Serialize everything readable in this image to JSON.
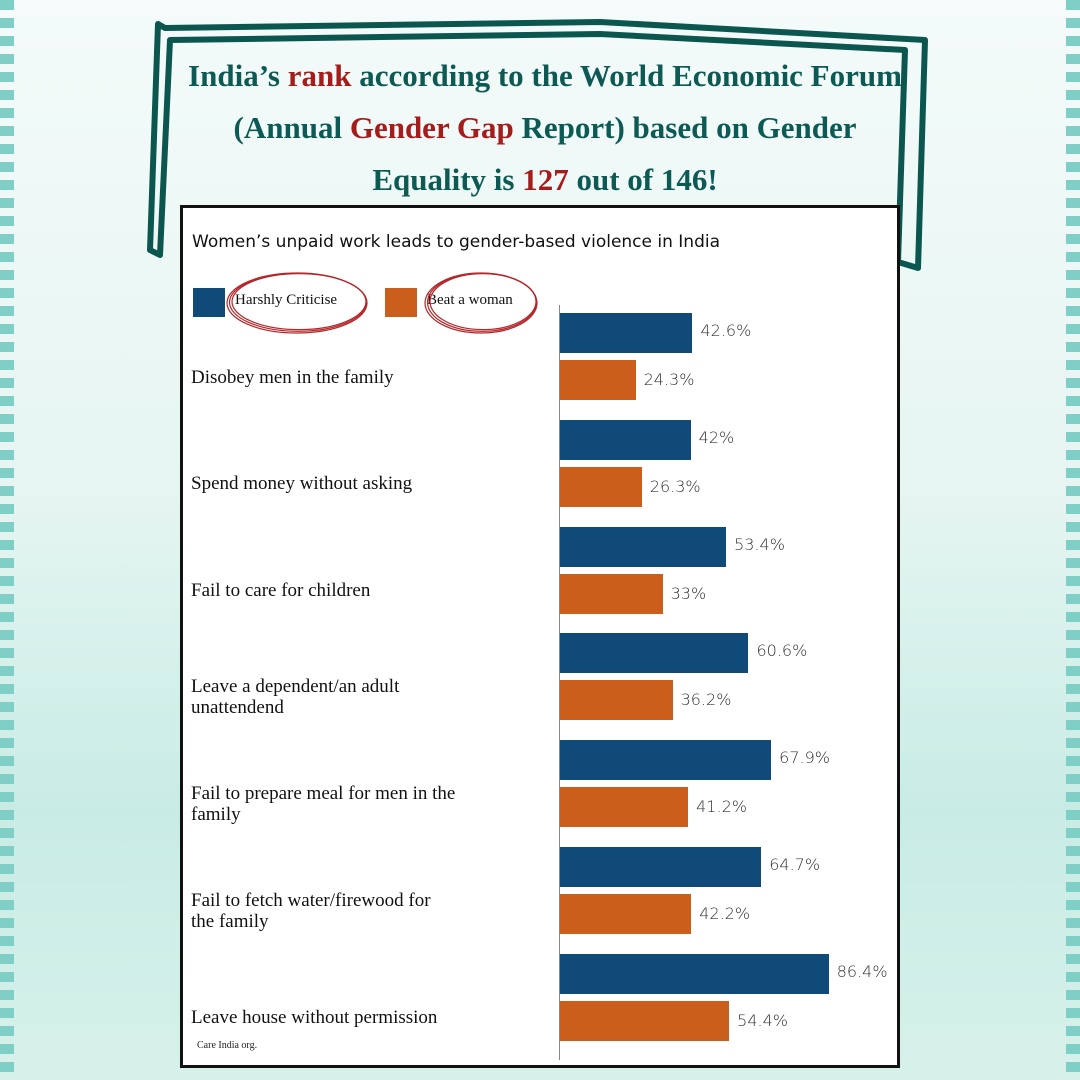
{
  "header": {
    "headline": [
      "India’s ",
      "rank",
      " according to the World Economic Forum (Annual ",
      "Gender Gap",
      " Report) based on Gender Equality is ",
      "127",
      " out of 146!"
    ]
  },
  "chart_data": {
    "type": "hbar",
    "title": "Women’s unpaid work leads to gender-based violence in India",
    "categories": [
      "Disobey men in the family",
      "Spend money without asking",
      "Fail to care for children",
      "Leave a dependent/an adult\nunattendend",
      "Fail to prepare meal for men in the\nfamily",
      "Fail to fetch water/firewood for\nthe family",
      "Leave house without permission"
    ],
    "series": [
      {
        "name": "Harshly Criticise",
        "color": "#0f4a78",
        "values": [
          42.6,
          42,
          53.4,
          60.6,
          67.9,
          64.7,
          86.4
        ],
        "value_labels": [
          "42.6%",
          "42%",
          "53.4%",
          "60.6%",
          "67.9%",
          "64.7%",
          "86.4%"
        ]
      },
      {
        "name": "Beat a woman",
        "color": "#cc5e1b",
        "values": [
          24.3,
          26.3,
          33,
          36.2,
          41.2,
          42.2,
          54.4
        ],
        "value_labels": [
          "24.3%",
          "26.3%",
          "33%",
          "36.2%",
          "41.2%",
          "42.2%",
          "54.4%"
        ]
      }
    ],
    "xlim": [
      0,
      100
    ],
    "source": "Care India org."
  }
}
